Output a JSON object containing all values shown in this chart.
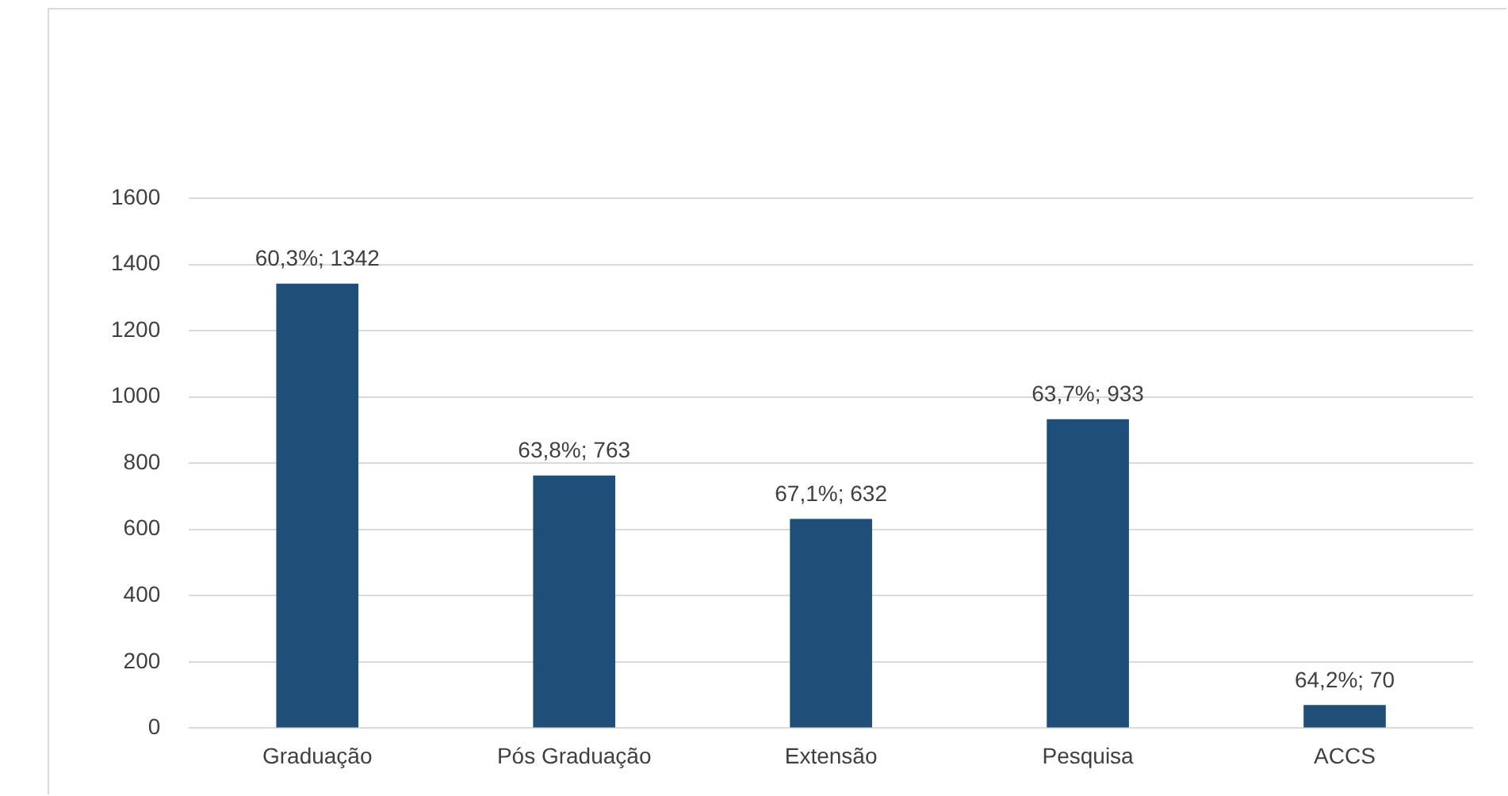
{
  "chart_data": {
    "type": "bar",
    "categories": [
      "Graduação",
      "Pós Graduação",
      "Extensão",
      "Pesquisa",
      "ACCS"
    ],
    "values": [
      1342,
      763,
      632,
      933,
      70
    ],
    "value_labels": [
      "60,3%; 1342",
      "63,8%; 763",
      "67,1%; 632",
      "63,7%; 933",
      "64,2%; 70"
    ],
    "color": "#1f4e79",
    "ylim": [
      0,
      1600
    ],
    "yticks": [
      0,
      200,
      400,
      600,
      800,
      1000,
      1200,
      1400,
      1600
    ],
    "grid": "y",
    "legend": false
  }
}
